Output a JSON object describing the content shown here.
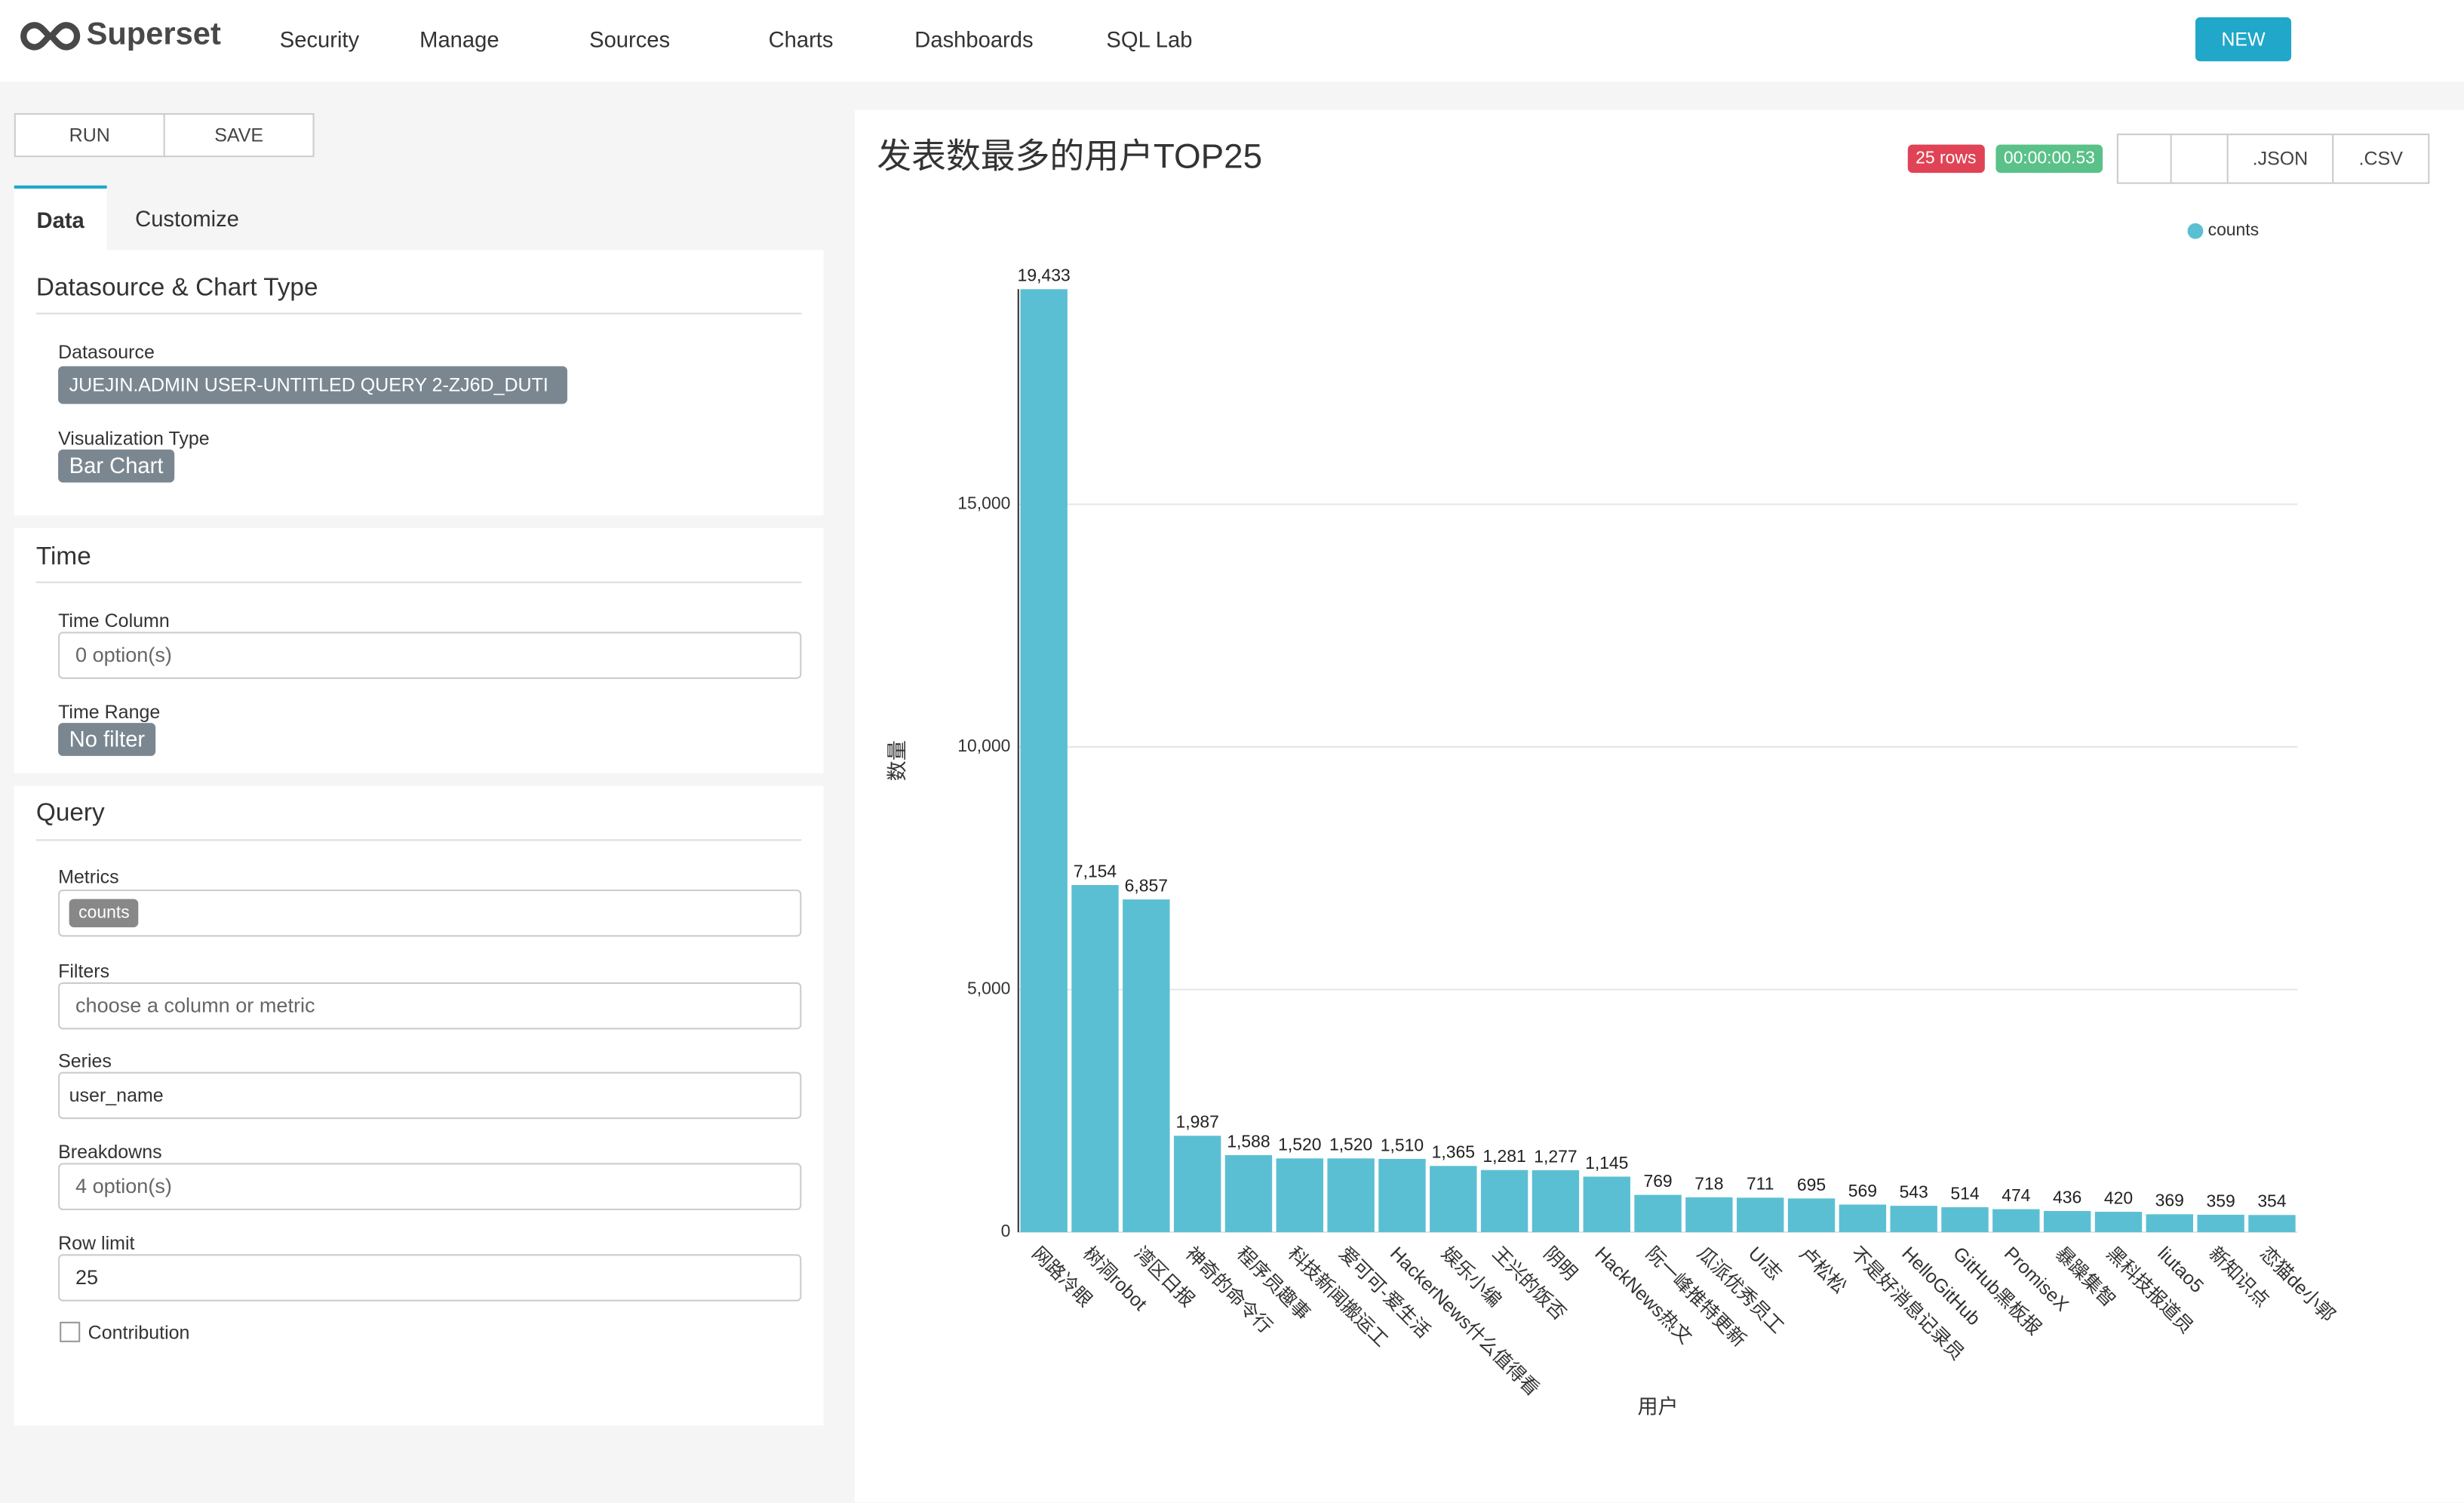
{
  "nav": {
    "brand": "Superset",
    "items": [
      "Security",
      "Manage",
      "Sources",
      "Charts",
      "Dashboards",
      "SQL Lab"
    ],
    "new": "NEW"
  },
  "toolbar": {
    "run": "RUN",
    "save": "SAVE"
  },
  "tabs": [
    "Data",
    "Customize"
  ],
  "panel": {
    "datasource_section": "Datasource & Chart Type",
    "datasource_label": "Datasource",
    "datasource_value": "JUEJIN.ADMIN USER-UNTITLED QUERY 2-ZJ6D_DUTI",
    "viz_label": "Visualization Type",
    "viz_value": "Bar Chart",
    "time_section": "Time",
    "time_column_label": "Time Column",
    "time_column_value": "0 option(s)",
    "time_range_label": "Time Range",
    "time_range_value": "No filter",
    "query_section": "Query",
    "metrics_label": "Metrics",
    "metrics_value": "counts",
    "filters_label": "Filters",
    "filters_placeholder": "choose a column or metric",
    "series_label": "Series",
    "series_value": "user_name",
    "breakdowns_label": "Breakdowns",
    "breakdowns_value": "4 option(s)",
    "row_limit_label": "Row limit",
    "row_limit_value": "25",
    "contribution_label": "Contribution"
  },
  "chart_header": {
    "rows": "25 rows",
    "timer": "00:00:00.53",
    "json": ".JSON",
    "csv": ".CSV"
  },
  "chart_data": {
    "type": "bar",
    "title": "发表数最多的用户TOP25",
    "x_label": "用户",
    "y_label": "数量",
    "categories": [
      "网路冷眼",
      "树洞robot",
      "湾区日报",
      "神奇的命令行",
      "程序员趣事",
      "科技新闻搬运工",
      "爱可可-爱生活",
      "HackerNews什么值得看",
      "娱乐小编",
      "王兴的饭否",
      "阴明",
      "HackNews热文",
      "阮一峰推特更新",
      "瓜派优秀员工",
      "UI志",
      "卢松松",
      "不是好消息记录员",
      "HelloGitHub",
      "GitHub黑板报",
      "PromiseX",
      "暴躁集智",
      "黑科技报道员",
      "liutao5",
      "新知识点",
      "恋猫de小郭"
    ],
    "series": [
      {
        "name": "counts",
        "color": "#5bbfd3",
        "values": [
          19433,
          7154,
          6857,
          1987,
          1588,
          1520,
          1520,
          1510,
          1365,
          1281,
          1277,
          1145,
          769,
          718,
          711,
          695,
          569,
          543,
          514,
          474,
          436,
          420,
          369,
          359,
          354
        ],
        "value_labels": [
          "19,433",
          "7,154",
          "6,857",
          "1,987",
          "1,588",
          "1,520",
          "1,520",
          "1,510",
          "1,365",
          "1,281",
          "1,277",
          "1,145",
          "769",
          "718",
          "711",
          "695",
          "569",
          "543",
          "514",
          "474",
          "436",
          "420",
          "369",
          "359",
          "354"
        ]
      }
    ],
    "ylim": [
      0,
      19433
    ],
    "yticks": [
      0,
      {
        "value": 5000,
        "label": "5,000"
      },
      {
        "value": 10000,
        "label": "10,000"
      },
      {
        "value": 15000,
        "label": "15,000"
      }
    ],
    "grid": true,
    "legend": "top-right"
  }
}
